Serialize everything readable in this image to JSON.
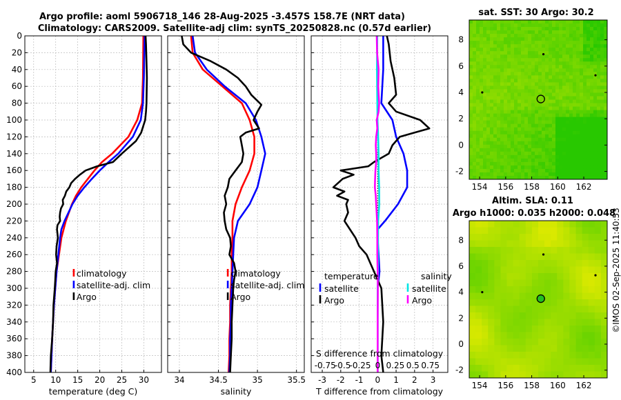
{
  "title_line1": "Argo profile: aoml 5906718_146 28-Aug-2025 -3.457S 158.7E (NRT data)",
  "title_line2": "Climatology: CARS2009. Satellite-adj clim: synTS_20250828.nc (0.57d earlier)",
  "watermark": "©IMOS 02-Sep-2025 11:40:53",
  "colors": {
    "climatology": "#ff0000",
    "satellite": "#0000ff",
    "argo": "#000000",
    "sat_salinity": "#00e5e5",
    "argo_salinity": "#ff00ff"
  },
  "chart_data": [
    {
      "type": "line",
      "name": "temperature",
      "xlabel": "temperature (deg C)",
      "xlim": [
        3,
        34
      ],
      "ylim": [
        0,
        400
      ],
      "xticks": [
        5,
        10,
        15,
        20,
        25,
        30
      ],
      "yticks": [
        0,
        20,
        40,
        60,
        80,
        100,
        120,
        140,
        160,
        180,
        200,
        220,
        240,
        260,
        280,
        300,
        320,
        340,
        360,
        380,
        400
      ],
      "legend": {
        "position": "lower-right",
        "entries": [
          "climatology",
          "satellite-adj. clim",
          "Argo"
        ]
      },
      "series": [
        {
          "name": "climatology",
          "color": "#ff0000",
          "depth": [
            0,
            50,
            80,
            100,
            120,
            140,
            150,
            160,
            170,
            180,
            190,
            200,
            220,
            240,
            280,
            320,
            360,
            400
          ],
          "values": [
            29.9,
            29.8,
            29.6,
            28.5,
            26.5,
            22.8,
            20.5,
            18.8,
            17.3,
            15.8,
            14.6,
            13.7,
            12.3,
            11.3,
            10.2,
            9.6,
            9.2,
            8.9
          ]
        },
        {
          "name": "satellite-adj. clim",
          "color": "#0000ff",
          "depth": [
            0,
            50,
            80,
            100,
            120,
            140,
            150,
            160,
            170,
            180,
            190,
            200,
            220,
            230,
            240,
            280,
            320,
            360,
            400
          ],
          "values": [
            30.2,
            30.0,
            29.8,
            29.3,
            27.5,
            24.2,
            22.0,
            20.0,
            18.2,
            16.5,
            15.0,
            13.8,
            12.0,
            11.3,
            11.0,
            10.2,
            9.6,
            9.2,
            8.9
          ]
        },
        {
          "name": "Argo",
          "color": "#000000",
          "depth": [
            0,
            10,
            30,
            50,
            80,
            90,
            100,
            115,
            125,
            140,
            150,
            155,
            160,
            165,
            170,
            175,
            180,
            185,
            190,
            195,
            200,
            205,
            210,
            215,
            220,
            225,
            230,
            240,
            250,
            260,
            270,
            280,
            290,
            300,
            320,
            340,
            360,
            380,
            400
          ],
          "values": [
            30.4,
            30.5,
            30.6,
            30.7,
            30.6,
            30.5,
            30.3,
            29.4,
            28.2,
            25.0,
            23.0,
            19.4,
            16.8,
            15.5,
            14.4,
            13.5,
            13.1,
            12.4,
            12.1,
            11.6,
            11.7,
            11.2,
            11.0,
            10.9,
            11.0,
            10.4,
            10.3,
            10.5,
            10.2,
            10.1,
            10.3,
            10.0,
            9.9,
            9.8,
            9.5,
            9.4,
            9.2,
            8.9,
            8.8
          ]
        }
      ]
    },
    {
      "type": "line",
      "name": "salinity",
      "xlabel": "salinity",
      "xlim": [
        33.85,
        35.6
      ],
      "ylim": [
        0,
        400
      ],
      "xticks": [
        34,
        34.5,
        35,
        35.5
      ],
      "legend": {
        "position": "lower-right",
        "entries": [
          "climatology",
          "satellite-adj. clim",
          "Argo"
        ]
      },
      "series": [
        {
          "name": "climatology",
          "color": "#ff0000",
          "depth": [
            0,
            20,
            40,
            60,
            80,
            100,
            120,
            140,
            160,
            180,
            200,
            220,
            240,
            260,
            280,
            300,
            320,
            340,
            360,
            380,
            400
          ],
          "values": [
            34.15,
            34.17,
            34.3,
            34.55,
            34.8,
            34.9,
            34.96,
            34.96,
            34.9,
            34.8,
            34.72,
            34.68,
            34.68,
            34.67,
            34.67,
            34.66,
            34.65,
            34.65,
            34.64,
            34.64,
            34.63
          ]
        },
        {
          "name": "satellite-adj. clim",
          "color": "#0000ff",
          "depth": [
            0,
            20,
            40,
            60,
            80,
            100,
            120,
            140,
            160,
            180,
            200,
            220,
            240,
            260,
            280,
            300,
            320,
            340,
            360,
            380,
            400
          ],
          "values": [
            34.17,
            34.2,
            34.35,
            34.58,
            34.85,
            34.98,
            35.05,
            35.1,
            35.05,
            35.0,
            34.9,
            34.75,
            34.7,
            34.69,
            34.68,
            34.67,
            34.66,
            34.66,
            34.65,
            34.65,
            34.64
          ]
        },
        {
          "name": "Argo",
          "color": "#000000",
          "depth": [
            0,
            10,
            20,
            30,
            40,
            50,
            60,
            70,
            80,
            82,
            90,
            100,
            110,
            115,
            120,
            130,
            140,
            150,
            160,
            170,
            180,
            190,
            200,
            210,
            220,
            230,
            240,
            250,
            260,
            270,
            280,
            290,
            300,
            320,
            340,
            360,
            380,
            400
          ],
          "values": [
            34.03,
            34.05,
            34.15,
            34.4,
            34.6,
            34.75,
            34.85,
            34.92,
            35.03,
            35.05,
            35.0,
            34.95,
            35.02,
            34.85,
            34.78,
            34.8,
            34.82,
            34.8,
            34.72,
            34.64,
            34.62,
            34.58,
            34.6,
            34.57,
            34.58,
            34.6,
            34.65,
            34.66,
            34.64,
            34.7,
            34.72,
            34.7,
            34.69,
            34.68,
            34.67,
            34.67,
            34.66,
            34.65
          ]
        }
      ]
    },
    {
      "type": "line",
      "name": "difference",
      "xlabel": "T difference from climatology",
      "xlabel_top": "S difference from climatology",
      "xlim": [
        -3.6,
        3.8
      ],
      "ylim": [
        0,
        400
      ],
      "xticks": [
        -3,
        -2,
        -1,
        0,
        1,
        2,
        3
      ],
      "xticks_top": [
        "-0.75",
        "-0.5",
        "-0.25",
        "0",
        "0.25",
        "0.5",
        "0.75"
      ],
      "legend": {
        "position": "lower",
        "entries": [
          "temperature",
          "satellite",
          "Argo",
          "salinity",
          "satellite",
          "Argo"
        ]
      },
      "series": [
        {
          "name": "T satellite",
          "color": "#0000ff",
          "depth": [
            0,
            40,
            80,
            100,
            120,
            140,
            160,
            180,
            200,
            220,
            230,
            240,
            260,
            280,
            300,
            340,
            380,
            400
          ],
          "values": [
            0.3,
            0.3,
            0.2,
            0.8,
            1.0,
            1.4,
            1.6,
            1.6,
            1.1,
            0.4,
            0.0,
            0.0,
            0.05,
            0.1,
            0.0,
            0.0,
            0.0,
            0.0
          ]
        },
        {
          "name": "T Argo",
          "color": "#000000",
          "depth": [
            0,
            10,
            30,
            50,
            70,
            80,
            90,
            100,
            110,
            115,
            120,
            130,
            140,
            150,
            155,
            160,
            165,
            170,
            180,
            185,
            190,
            195,
            200,
            210,
            220,
            230,
            240,
            250,
            260,
            270,
            280,
            290,
            300,
            340,
            380,
            400
          ],
          "values": [
            0.5,
            0.6,
            0.7,
            0.9,
            1.0,
            0.6,
            1.0,
            2.3,
            2.8,
            2.0,
            1.2,
            0.8,
            0.6,
            -0.2,
            -0.5,
            -2.0,
            -1.3,
            -1.9,
            -2.4,
            -1.8,
            -2.2,
            -1.6,
            -1.7,
            -1.6,
            -1.8,
            -1.5,
            -1.2,
            -1.0,
            -0.6,
            -0.4,
            -0.2,
            0.0,
            0.2,
            0.3,
            0.2,
            0.3
          ]
        },
        {
          "name": "S satellite",
          "color": "#00e5e5",
          "depth": [
            0,
            40,
            80,
            100,
            120,
            140,
            160,
            180,
            200,
            220,
            240,
            260,
            280,
            300,
            340,
            380,
            400
          ],
          "values": [
            -0.02,
            -0.04,
            -0.02,
            -0.01,
            0.03,
            0.05,
            0.05,
            0.08,
            0.09,
            0.03,
            0.02,
            0.02,
            0.02,
            0.0,
            0.0,
            0.0,
            0.0
          ]
        },
        {
          "name": "S Argo",
          "color": "#ff00ff",
          "depth": [
            0,
            20,
            40,
            60,
            80,
            90,
            100,
            110,
            120,
            130,
            140,
            150,
            160,
            170,
            180,
            190,
            200,
            220,
            240,
            260,
            280,
            300,
            340,
            380,
            400
          ],
          "values": [
            -0.05,
            -0.03,
            0.05,
            0.03,
            0.08,
            0.05,
            -0.05,
            -0.02,
            -0.08,
            -0.1,
            -0.08,
            -0.08,
            -0.12,
            -0.14,
            -0.15,
            -0.1,
            -0.08,
            -0.03,
            -0.02,
            -0.02,
            0.0,
            0.01,
            0.0,
            0.0,
            0.0
          ]
        }
      ]
    },
    {
      "type": "heatmap",
      "name": "sst_map",
      "title": "sat. SST: 30 Argo: 30.2",
      "xlim": [
        153.2,
        163.8
      ],
      "ylim": [
        -2.6,
        9.5
      ],
      "xticks": [
        154,
        156,
        158,
        160,
        162
      ],
      "yticks": [
        -2,
        0,
        2,
        4,
        6,
        8
      ],
      "argo_position": {
        "lon": 158.7,
        "lat": 3.5
      }
    },
    {
      "type": "heatmap",
      "name": "sla_map",
      "title": "Altim. SLA: 0.11",
      "subtitle": "Argo h1000: 0.035 h2000: 0.048",
      "xlim": [
        153.2,
        163.8
      ],
      "ylim": [
        -2.6,
        9.5
      ],
      "xticks": [
        154,
        156,
        158,
        160,
        162
      ],
      "yticks": [
        -2,
        0,
        2,
        4,
        6,
        8
      ],
      "argo_position": {
        "lon": 158.7,
        "lat": 3.5
      }
    }
  ]
}
